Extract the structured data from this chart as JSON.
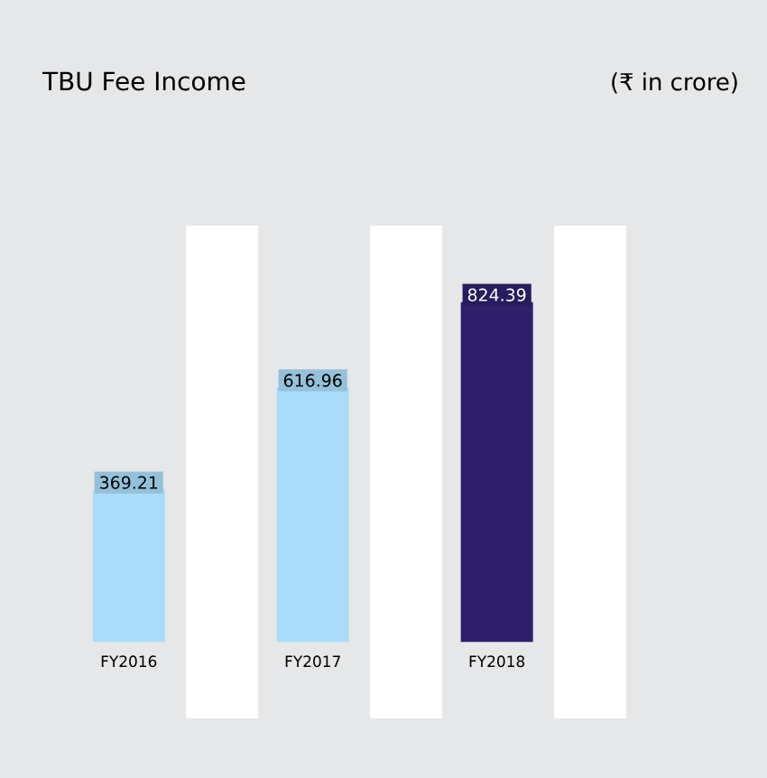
{
  "chart_data": {
    "type": "bar",
    "title": "TBU Fee Income",
    "subtitle": "(₹ in crore)",
    "categories": [
      "FY2016",
      "FY2017",
      "FY2018"
    ],
    "values": [
      369.21,
      616.96,
      824.39
    ],
    "colors": [
      "#a9dcf8",
      "#a9dcf8",
      "#2e1f6b"
    ],
    "data_labels": true
  }
}
